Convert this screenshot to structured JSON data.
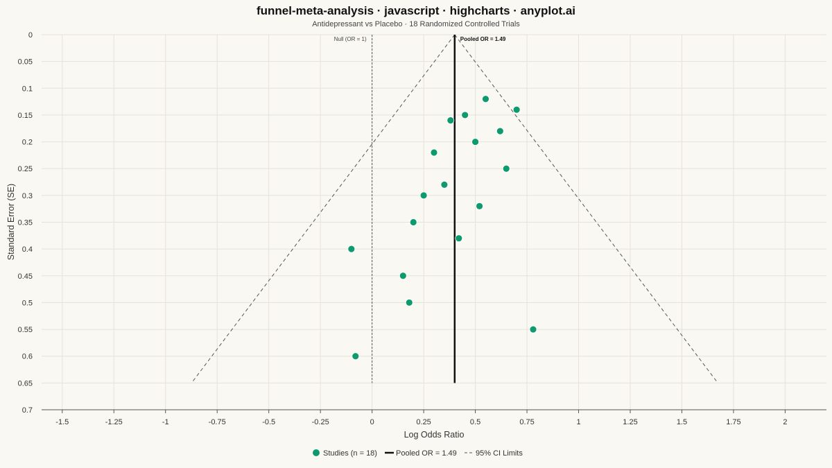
{
  "colors": {
    "background": "#faf8f2",
    "point": "#0e9a6e",
    "pooled_line": "#111111",
    "ci_line": "#555555",
    "null_line": "#555555",
    "grid": "#e4e2db"
  },
  "chart_data": {
    "type": "scatter",
    "title": "funnel-meta-analysis · javascript · highcharts · anyplot.ai",
    "subtitle": "Antidepressant vs Placebo · 18 Randomized Controlled Trials",
    "xlabel": "Log Odds Ratio",
    "ylabel": "Standard Error (SE)",
    "xlim": [
      -1.6,
      2.2
    ],
    "ylim": [
      0,
      0.7
    ],
    "y_reversed": true,
    "grid": true,
    "x_ticks": [
      -1.5,
      -1.25,
      -1,
      -0.75,
      -0.5,
      -0.25,
      0,
      0.25,
      0.5,
      0.75,
      1,
      1.25,
      1.5,
      1.75,
      2
    ],
    "x_tick_labels": [
      "-1.5",
      "-1.25",
      "-1",
      "-0.75",
      "-0.5",
      "-0.25",
      "0",
      "0.25",
      "0.5",
      "0.75",
      "1",
      "1.25",
      "1.5",
      "1.75",
      "2"
    ],
    "y_ticks": [
      0,
      0.05,
      0.1,
      0.15,
      0.2,
      0.25,
      0.3,
      0.35,
      0.4,
      0.45,
      0.5,
      0.55,
      0.6,
      0.65,
      0.7
    ],
    "y_tick_labels": [
      "0",
      "0.05",
      "0.1",
      "0.15",
      "0.2",
      "0.25",
      "0.3",
      "0.35",
      "0.4",
      "0.45",
      "0.5",
      "0.55",
      "0.6",
      "0.65",
      "0.7"
    ],
    "pooled_log_or": 0.4,
    "null_log_or": 0,
    "ci_max_se": 0.65,
    "ci_z": 1.96,
    "series": [
      {
        "name": "Studies (n = 18)",
        "points": [
          {
            "x": 0.55,
            "y": 0.12
          },
          {
            "x": 0.7,
            "y": 0.14
          },
          {
            "x": 0.45,
            "y": 0.15
          },
          {
            "x": 0.38,
            "y": 0.16
          },
          {
            "x": 0.62,
            "y": 0.18
          },
          {
            "x": 0.5,
            "y": 0.2
          },
          {
            "x": 0.3,
            "y": 0.22
          },
          {
            "x": 0.65,
            "y": 0.25
          },
          {
            "x": 0.35,
            "y": 0.28
          },
          {
            "x": 0.25,
            "y": 0.3
          },
          {
            "x": 0.52,
            "y": 0.32
          },
          {
            "x": 0.2,
            "y": 0.35
          },
          {
            "x": 0.42,
            "y": 0.38
          },
          {
            "x": -0.1,
            "y": 0.4
          },
          {
            "x": 0.15,
            "y": 0.45
          },
          {
            "x": 0.18,
            "y": 0.5
          },
          {
            "x": 0.78,
            "y": 0.55
          },
          {
            "x": -0.08,
            "y": 0.6
          }
        ]
      }
    ],
    "annotations": {
      "null_label": "Null (OR = 1)",
      "pooled_label": "Pooled OR = 1.49"
    },
    "legend": {
      "placement": "bottom-center",
      "items": [
        {
          "label": "Studies (n = 18)",
          "symbol": "dot"
        },
        {
          "label": "Pooled OR = 1.49",
          "symbol": "solid-line"
        },
        {
          "label": "95% CI Limits",
          "symbol": "dashed-line"
        }
      ]
    }
  }
}
